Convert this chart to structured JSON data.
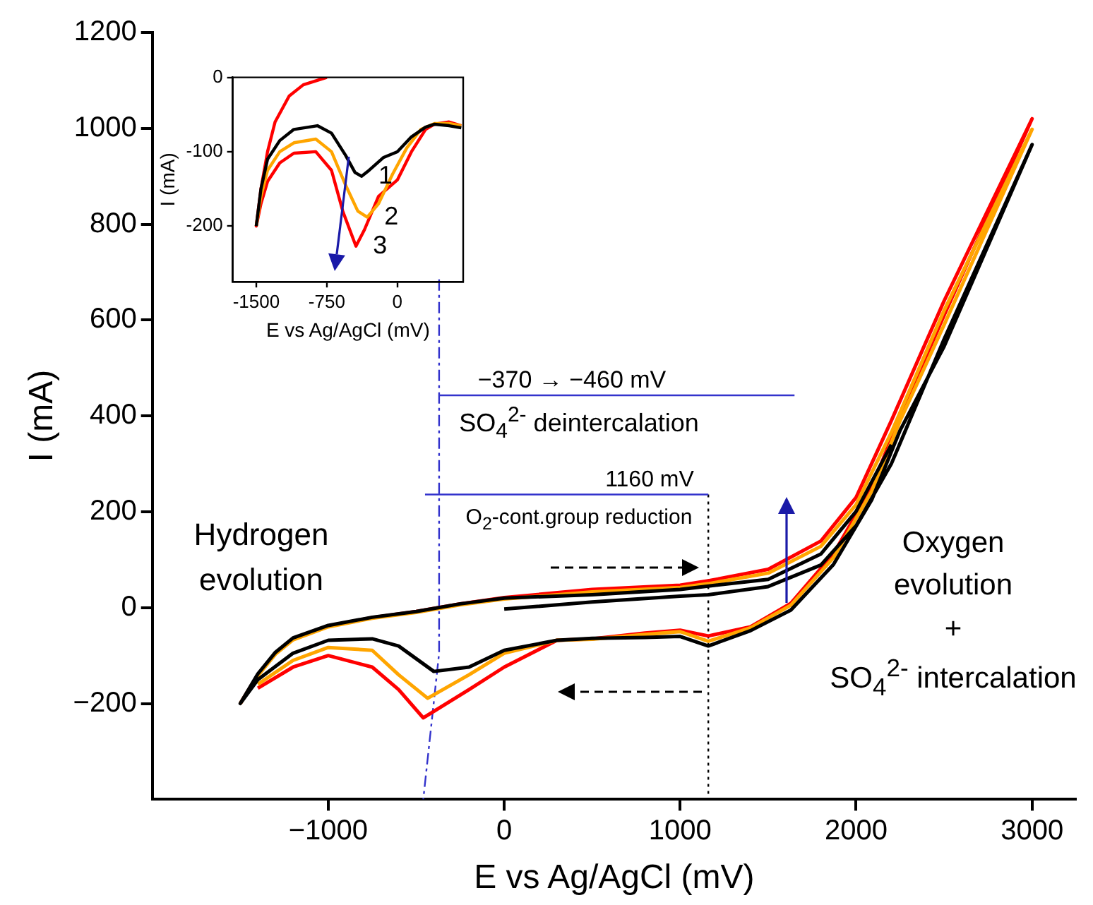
{
  "chart_data": [
    {
      "type": "line",
      "xlabel": "E vs Ag/AgCl (mV)",
      "ylabel": "I (mA)",
      "xlim": [
        -2000,
        3250
      ],
      "xticks": [
        {
          "value": -1000,
          "label": "−1000"
        },
        0,
        1000,
        2000,
        3000
      ],
      "ylim": [
        -400,
        1200
      ],
      "yticks": [
        {
          "value": -200,
          "label": "−200"
        },
        0,
        200,
        400,
        600,
        800,
        1000,
        1200
      ],
      "series": [
        {
          "color": "#000000",
          "x": [
            0,
            500,
            1000,
            1160,
            1500,
            1800,
            2000,
            2200,
            2500,
            3000,
            2500,
            2250,
            2089,
            1871,
            1629,
            1400,
            1160,
            1000,
            800,
            500,
            300,
            0,
            -200,
            -400,
            -600,
            -750,
            -1000,
            -1200,
            -1400,
            -1500,
            -1400,
            -1300,
            -1200,
            -1000,
            -750,
            -500,
            -250,
            0,
            500,
            1000,
            1160,
            1500,
            1800,
            2000,
            2200
          ],
          "values": [
            -3,
            12,
            24,
            27,
            44,
            89,
            171,
            300,
            560,
            966,
            545,
            370,
            225,
            90,
            -5,
            -48,
            -80,
            -60,
            -62,
            -64,
            -68,
            -89,
            -124,
            -133,
            -80,
            -65,
            -68,
            -95,
            -150,
            -200,
            -138,
            -93,
            -63,
            -37,
            -20,
            -8,
            8,
            20,
            27,
            38,
            45,
            59,
            112,
            201,
            340
          ]
        },
        {
          "color": "#ffa500",
          "x": [
            -1500,
            -1400,
            -1300,
            -1200,
            -1000,
            -750,
            -500,
            -250,
            0,
            500,
            1000,
            1160,
            1500,
            1800,
            2000,
            2200,
            2500,
            3000,
            2500,
            2250,
            2089,
            1871,
            1629,
            1400,
            1160,
            1000,
            800,
            500,
            300,
            0,
            -200,
            -435,
            -600,
            -750,
            -1000,
            -1200,
            -1400
          ],
          "values": [
            -200,
            -142,
            -97,
            -67,
            -40,
            -22,
            -10,
            6,
            18,
            33,
            42,
            50,
            72,
            128,
            215,
            365,
            620,
            998,
            590,
            390,
            243,
            104,
            5,
            -42,
            -70,
            -50,
            -56,
            -66,
            -68,
            -95,
            -140,
            -189,
            -140,
            -89,
            -83,
            -110,
            -160
          ]
        },
        {
          "color": "#ff0000",
          "x": [
            -1500,
            -1400,
            -1300,
            -1200,
            -1000,
            -750,
            -500,
            -250,
            0,
            500,
            1000,
            1160,
            1500,
            1800,
            2000,
            2200,
            2500,
            3000,
            2500,
            2250,
            2089,
            1871,
            1629,
            1400,
            1160,
            1000,
            800,
            500,
            300,
            0,
            -200,
            -460,
            -600,
            -750,
            -1000,
            -1200,
            -1400
          ],
          "values": [
            -200,
            -140,
            -95,
            -65,
            -38,
            -21,
            -8,
            8,
            21,
            38,
            47,
            56,
            80,
            139,
            230,
            390,
            640,
            1020,
            610,
            399,
            251,
            112,
            9,
            -40,
            -59,
            -47,
            -53,
            -65,
            -68,
            -124,
            -171,
            -230,
            -171,
            -124,
            -100,
            -124,
            -168
          ]
        },
        {
          "color": "#3333cc",
          "line_style": "dashed",
          "x": [
            -370,
            -370,
            -460
          ],
          "values": [
            685,
            -95,
            -400
          ]
        },
        {
          "color": "#3333cc",
          "x": [
            -370,
            1650
          ],
          "values": [
            443,
            443
          ]
        },
        {
          "color": "#3333cc",
          "x": [
            -450,
            1160
          ],
          "values": [
            236,
            236
          ]
        },
        {
          "color": "#000000",
          "line_style": "dotted",
          "x": [
            1160,
            1160
          ],
          "values": [
            236,
            -400
          ]
        }
      ],
      "annotations": [
        "Hydrogen\nevolution",
        "Oxygen\nevolution\n+\nSO$_{4}$$^{2-}$ intercalation",
        "−370 → −460 mV",
        "SO$_{4}$$^{2-}$ deintercalation",
        "1160 mV",
        "O$_{2}$-cont.group reduction"
      ]
    },
    {
      "type": "line",
      "xlabel": "E vs Ag/AgCl (mV)",
      "ylabel": "I (mA)",
      "xlim": [
        -1750,
        700
      ],
      "xticks": [
        -1500,
        -750,
        0
      ],
      "ylim": [
        -275,
        0
      ],
      "yticks": [
        -200,
        -100,
        0
      ],
      "series": [
        {
          "name": "1",
          "color": "#000000",
          "x": [
            -1500,
            -1450,
            -1380,
            -1250,
            -1100,
            -850,
            -700,
            -550,
            -450,
            -381,
            -300,
            -150,
            0,
            150,
            300,
            395,
            550,
            680
          ],
          "values": [
            -200,
            -150,
            -110,
            -85,
            -70,
            -65,
            -75,
            -105,
            -128,
            -133,
            -125,
            -108,
            -100,
            -80,
            -67,
            -63,
            -65,
            -68
          ]
        },
        {
          "name": "2",
          "color": "#ffa500",
          "x": [
            -1500,
            -1450,
            -1380,
            -1250,
            -1100,
            -867,
            -700,
            -550,
            -420,
            -320,
            -200,
            -50,
            100,
            250,
            395,
            550,
            680
          ],
          "values": [
            -200,
            -160,
            -125,
            -100,
            -88,
            -83,
            -100,
            -145,
            -180,
            -188,
            -170,
            -130,
            -95,
            -70,
            -62,
            -62,
            -65
          ]
        },
        {
          "name": "3",
          "color": "#ff0000",
          "x": [
            -750,
            -1000,
            -1150,
            -1300,
            -1380,
            -1450,
            -1500,
            -1450,
            -1380,
            -1250,
            -1100,
            -867,
            -700,
            -580,
            -440,
            -350,
            -200,
            0,
            150,
            300,
            395,
            550,
            680
          ],
          "values": [
            0,
            -10,
            -25,
            -60,
            -100,
            -150,
            -200,
            -170,
            -140,
            -115,
            -102,
            -100,
            -125,
            -180,
            -227,
            -205,
            -160,
            -138,
            -100,
            -70,
            -63,
            -60,
            -65
          ]
        }
      ]
    }
  ]
}
